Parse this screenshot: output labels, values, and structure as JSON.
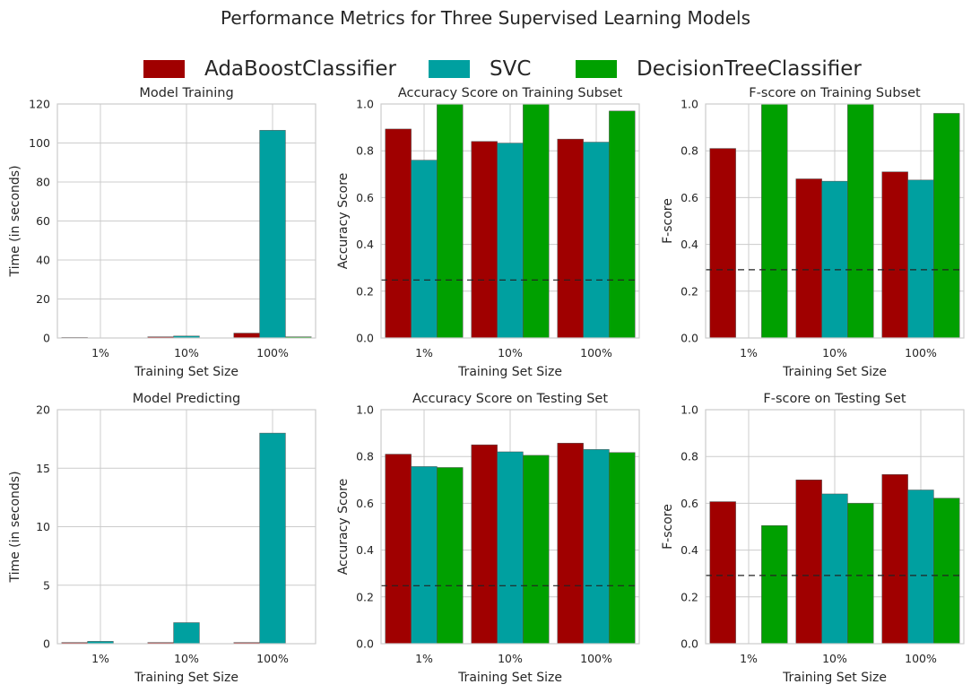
{
  "figure": {
    "title": "Performance Metrics for Three Supervised Learning Models",
    "legend": [
      {
        "label": "AdaBoostClassifier",
        "color": "#a00000"
      },
      {
        "label": "SVC",
        "color": "#00a0a0"
      },
      {
        "label": "DecisionTreeClassifier",
        "color": "#00a000"
      }
    ]
  },
  "chart_data": [
    {
      "type": "bar",
      "title": "Model Training",
      "xlabel": "Training Set Size",
      "ylabel": "Time (in seconds)",
      "categories": [
        "1%",
        "10%",
        "100%"
      ],
      "ylim": [
        0,
        120
      ],
      "yticks": [
        "0",
        "20",
        "40",
        "60",
        "80",
        "100",
        "120"
      ],
      "grid": true,
      "series": [
        {
          "name": "AdaBoostClassifier",
          "values": [
            0.3,
            0.6,
            2.5
          ]
        },
        {
          "name": "SVC",
          "values": [
            0.1,
            1.0,
            106.5
          ]
        },
        {
          "name": "DecisionTreeClassifier",
          "values": [
            0.0,
            0.1,
            0.6
          ]
        }
      ]
    },
    {
      "type": "bar",
      "title": "Accuracy Score on Training Subset",
      "xlabel": "Training Set Size",
      "ylabel": "Accuracy Score",
      "categories": [
        "1%",
        "10%",
        "100%"
      ],
      "ylim": [
        0,
        1.0
      ],
      "yticks": [
        "0.0",
        "0.2",
        "0.4",
        "0.6",
        "0.8",
        "1.0"
      ],
      "grid": true,
      "baseline": 0.2478,
      "series": [
        {
          "name": "AdaBoostClassifier",
          "values": [
            0.893,
            0.84,
            0.85
          ]
        },
        {
          "name": "SVC",
          "values": [
            0.76,
            0.833,
            0.837
          ]
        },
        {
          "name": "DecisionTreeClassifier",
          "values": [
            1.0,
            1.0,
            0.97
          ]
        }
      ]
    },
    {
      "type": "bar",
      "title": "F-score on Training Subset",
      "xlabel": "Training Set Size",
      "ylabel": "F-score",
      "categories": [
        "1%",
        "10%",
        "100%"
      ],
      "ylim": [
        0,
        1.0
      ],
      "yticks": [
        "0.0",
        "0.2",
        "0.4",
        "0.6",
        "0.8",
        "1.0"
      ],
      "grid": true,
      "baseline": 0.2917,
      "series": [
        {
          "name": "AdaBoostClassifier",
          "values": [
            0.81,
            0.68,
            0.71
          ]
        },
        {
          "name": "SVC",
          "values": [
            0.0,
            0.67,
            0.675
          ]
        },
        {
          "name": "DecisionTreeClassifier",
          "values": [
            1.0,
            1.0,
            0.96
          ]
        }
      ]
    },
    {
      "type": "bar",
      "title": "Model Predicting",
      "xlabel": "Training Set Size",
      "ylabel": "Time (in seconds)",
      "categories": [
        "1%",
        "10%",
        "100%"
      ],
      "ylim": [
        0,
        20
      ],
      "yticks": [
        "0",
        "5",
        "10",
        "15",
        "20"
      ],
      "grid": true,
      "series": [
        {
          "name": "AdaBoostClassifier",
          "values": [
            0.1,
            0.1,
            0.1
          ]
        },
        {
          "name": "SVC",
          "values": [
            0.2,
            1.8,
            18.0
          ]
        },
        {
          "name": "DecisionTreeClassifier",
          "values": [
            0.0,
            0.0,
            0.0
          ]
        }
      ]
    },
    {
      "type": "bar",
      "title": "Accuracy Score on Testing Set",
      "xlabel": "Training Set Size",
      "ylabel": "Accuracy Score",
      "categories": [
        "1%",
        "10%",
        "100%"
      ],
      "ylim": [
        0,
        1.0
      ],
      "yticks": [
        "0.0",
        "0.2",
        "0.4",
        "0.6",
        "0.8",
        "1.0"
      ],
      "grid": true,
      "baseline": 0.2478,
      "series": [
        {
          "name": "AdaBoostClassifier",
          "values": [
            0.81,
            0.85,
            0.857
          ]
        },
        {
          "name": "SVC",
          "values": [
            0.757,
            0.82,
            0.83
          ]
        },
        {
          "name": "DecisionTreeClassifier",
          "values": [
            0.753,
            0.805,
            0.817
          ]
        }
      ]
    },
    {
      "type": "bar",
      "title": "F-score on Testing Set",
      "xlabel": "Training Set Size",
      "ylabel": "F-score",
      "categories": [
        "1%",
        "10%",
        "100%"
      ],
      "ylim": [
        0,
        1.0
      ],
      "yticks": [
        "0.0",
        "0.2",
        "0.4",
        "0.6",
        "0.8",
        "1.0"
      ],
      "grid": true,
      "baseline": 0.2917,
      "series": [
        {
          "name": "AdaBoostClassifier",
          "values": [
            0.607,
            0.7,
            0.723
          ]
        },
        {
          "name": "SVC",
          "values": [
            0.0,
            0.64,
            0.657
          ]
        },
        {
          "name": "DecisionTreeClassifier",
          "values": [
            0.505,
            0.6,
            0.622
          ]
        }
      ]
    }
  ]
}
